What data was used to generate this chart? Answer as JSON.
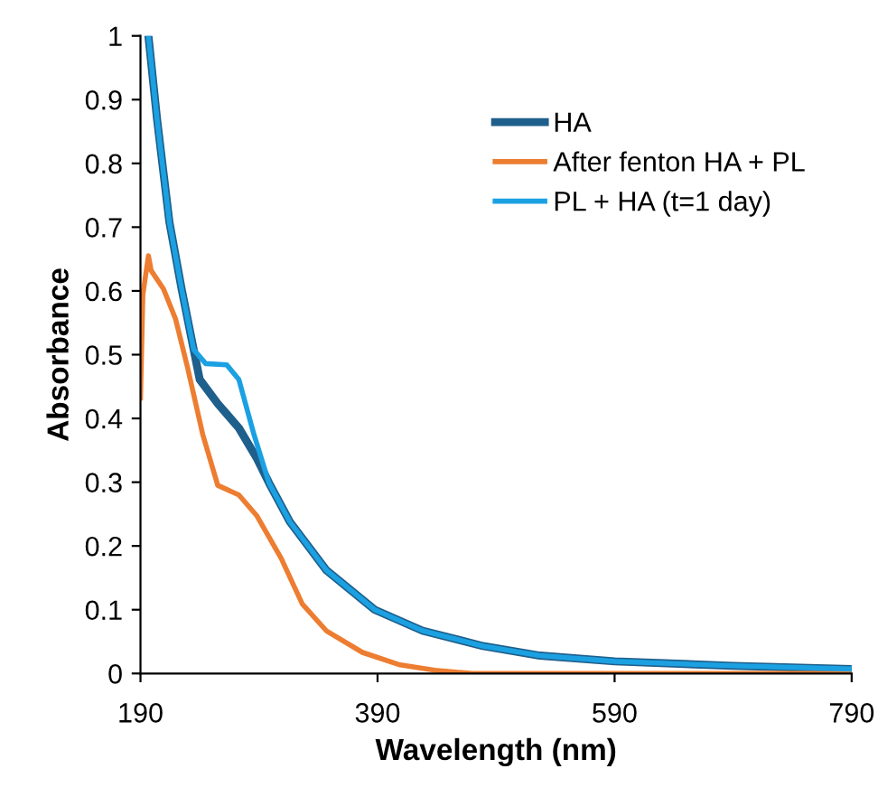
{
  "chart_data": {
    "type": "line",
    "xlabel": "Wavelength (nm)",
    "ylabel": "Absorbance",
    "xlim": [
      190,
      790
    ],
    "xticks": [
      190,
      390,
      590,
      790
    ],
    "ylim": [
      0,
      1
    ],
    "yticks": [
      0,
      0.1,
      0.2,
      0.3,
      0.4,
      0.5,
      0.6,
      0.7,
      0.8,
      0.9,
      1
    ],
    "grid": false,
    "legend": "top right",
    "marker": "none",
    "line_style": "solid",
    "series": [
      {
        "name": "HA",
        "color": "#1f5f8b",
        "x": [
          196.7,
          204,
          214.4,
          224.7,
          234.9,
          240,
          255.3,
          273,
          288.3,
          298.4,
          316,
          346.8,
          387.6,
          428,
          479,
          527,
          590,
          690,
          790
        ],
        "values": [
          1.0,
          0.869,
          0.708,
          0.603,
          0.508,
          0.461,
          0.423,
          0.385,
          0.337,
          0.299,
          0.238,
          0.162,
          0.1,
          0.067,
          0.043,
          0.028,
          0.019,
          0.012,
          0.007
        ]
      },
      {
        "name": "After fenton HA + PL",
        "color": "#ed7d31",
        "x": [
          190,
          192,
          196.7,
          199,
          209.4,
          219.6,
          229.7,
          242.5,
          255.2,
          273,
          288.3,
          308.6,
          326.5,
          346.8,
          377.3,
          407.9,
          438.4,
          470,
          790
        ],
        "values": [
          0.432,
          0.594,
          0.655,
          0.632,
          0.603,
          0.556,
          0.48,
          0.375,
          0.295,
          0.28,
          0.247,
          0.181,
          0.109,
          0.067,
          0.033,
          0.014,
          0.005,
          0,
          0
        ]
      },
      {
        "name": "PL + HA (t=1 day)",
        "color": "#1ba1e2",
        "x": [
          196.7,
          204,
          214.4,
          224.7,
          234.9,
          245,
          262.8,
          273,
          285.7,
          298.4,
          316,
          346.8,
          387.6,
          428,
          479,
          527,
          590,
          690,
          790
        ],
        "values": [
          1.0,
          0.869,
          0.708,
          0.603,
          0.508,
          0.486,
          0.484,
          0.461,
          0.375,
          0.299,
          0.238,
          0.162,
          0.1,
          0.067,
          0.043,
          0.028,
          0.019,
          0.012,
          0.007
        ]
      }
    ]
  }
}
